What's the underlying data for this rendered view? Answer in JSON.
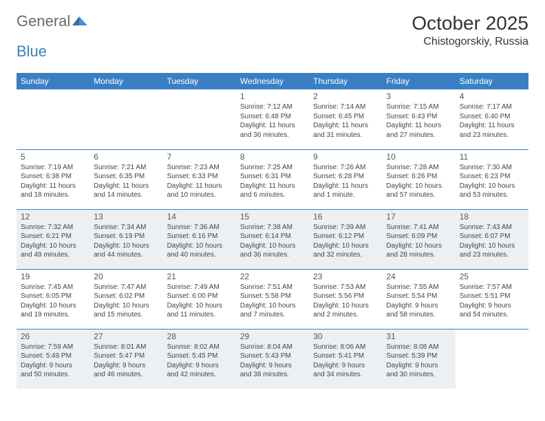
{
  "logo": {
    "part1": "General",
    "part2": "Blue"
  },
  "title": "October 2025",
  "location": "Chistogorskiy, Russia",
  "weekday_header_bg": "#3a7fc4",
  "weekdays": [
    "Sunday",
    "Monday",
    "Tuesday",
    "Wednesday",
    "Thursday",
    "Friday",
    "Saturday"
  ],
  "rows": [
    {
      "shaded": false,
      "cells": [
        {
          "empty": true
        },
        {
          "empty": true
        },
        {
          "empty": true
        },
        {
          "day": "1",
          "sunrise": "7:12 AM",
          "sunset": "6:48 PM",
          "daylight": "11 hours and 36 minutes."
        },
        {
          "day": "2",
          "sunrise": "7:14 AM",
          "sunset": "6:45 PM",
          "daylight": "11 hours and 31 minutes."
        },
        {
          "day": "3",
          "sunrise": "7:15 AM",
          "sunset": "6:43 PM",
          "daylight": "11 hours and 27 minutes."
        },
        {
          "day": "4",
          "sunrise": "7:17 AM",
          "sunset": "6:40 PM",
          "daylight": "11 hours and 23 minutes."
        }
      ]
    },
    {
      "shaded": false,
      "cells": [
        {
          "day": "5",
          "sunrise": "7:19 AM",
          "sunset": "6:38 PM",
          "daylight": "11 hours and 18 minutes."
        },
        {
          "day": "6",
          "sunrise": "7:21 AM",
          "sunset": "6:35 PM",
          "daylight": "11 hours and 14 minutes."
        },
        {
          "day": "7",
          "sunrise": "7:23 AM",
          "sunset": "6:33 PM",
          "daylight": "11 hours and 10 minutes."
        },
        {
          "day": "8",
          "sunrise": "7:25 AM",
          "sunset": "6:31 PM",
          "daylight": "11 hours and 6 minutes."
        },
        {
          "day": "9",
          "sunrise": "7:26 AM",
          "sunset": "6:28 PM",
          "daylight": "11 hours and 1 minute."
        },
        {
          "day": "10",
          "sunrise": "7:28 AM",
          "sunset": "6:26 PM",
          "daylight": "10 hours and 57 minutes."
        },
        {
          "day": "11",
          "sunrise": "7:30 AM",
          "sunset": "6:23 PM",
          "daylight": "10 hours and 53 minutes."
        }
      ]
    },
    {
      "shaded": true,
      "cells": [
        {
          "day": "12",
          "sunrise": "7:32 AM",
          "sunset": "6:21 PM",
          "daylight": "10 hours and 49 minutes."
        },
        {
          "day": "13",
          "sunrise": "7:34 AM",
          "sunset": "6:19 PM",
          "daylight": "10 hours and 44 minutes."
        },
        {
          "day": "14",
          "sunrise": "7:36 AM",
          "sunset": "6:16 PM",
          "daylight": "10 hours and 40 minutes."
        },
        {
          "day": "15",
          "sunrise": "7:38 AM",
          "sunset": "6:14 PM",
          "daylight": "10 hours and 36 minutes."
        },
        {
          "day": "16",
          "sunrise": "7:39 AM",
          "sunset": "6:12 PM",
          "daylight": "10 hours and 32 minutes."
        },
        {
          "day": "17",
          "sunrise": "7:41 AM",
          "sunset": "6:09 PM",
          "daylight": "10 hours and 28 minutes."
        },
        {
          "day": "18",
          "sunrise": "7:43 AM",
          "sunset": "6:07 PM",
          "daylight": "10 hours and 23 minutes."
        }
      ]
    },
    {
      "shaded": false,
      "cells": [
        {
          "day": "19",
          "sunrise": "7:45 AM",
          "sunset": "6:05 PM",
          "daylight": "10 hours and 19 minutes."
        },
        {
          "day": "20",
          "sunrise": "7:47 AM",
          "sunset": "6:02 PM",
          "daylight": "10 hours and 15 minutes."
        },
        {
          "day": "21",
          "sunrise": "7:49 AM",
          "sunset": "6:00 PM",
          "daylight": "10 hours and 11 minutes."
        },
        {
          "day": "22",
          "sunrise": "7:51 AM",
          "sunset": "5:58 PM",
          "daylight": "10 hours and 7 minutes."
        },
        {
          "day": "23",
          "sunrise": "7:53 AM",
          "sunset": "5:56 PM",
          "daylight": "10 hours and 2 minutes."
        },
        {
          "day": "24",
          "sunrise": "7:55 AM",
          "sunset": "5:54 PM",
          "daylight": "9 hours and 58 minutes."
        },
        {
          "day": "25",
          "sunrise": "7:57 AM",
          "sunset": "5:51 PM",
          "daylight": "9 hours and 54 minutes."
        }
      ]
    },
    {
      "shaded": true,
      "cells": [
        {
          "day": "26",
          "sunrise": "7:59 AM",
          "sunset": "5:49 PM",
          "daylight": "9 hours and 50 minutes."
        },
        {
          "day": "27",
          "sunrise": "8:01 AM",
          "sunset": "5:47 PM",
          "daylight": "9 hours and 46 minutes."
        },
        {
          "day": "28",
          "sunrise": "8:02 AM",
          "sunset": "5:45 PM",
          "daylight": "9 hours and 42 minutes."
        },
        {
          "day": "29",
          "sunrise": "8:04 AM",
          "sunset": "5:43 PM",
          "daylight": "9 hours and 38 minutes."
        },
        {
          "day": "30",
          "sunrise": "8:06 AM",
          "sunset": "5:41 PM",
          "daylight": "9 hours and 34 minutes."
        },
        {
          "day": "31",
          "sunrise": "8:08 AM",
          "sunset": "5:39 PM",
          "daylight": "9 hours and 30 minutes."
        },
        {
          "empty": true
        }
      ]
    }
  ],
  "labels": {
    "sunrise_prefix": "Sunrise: ",
    "sunset_prefix": "Sunset: ",
    "daylight_prefix": "Daylight: "
  }
}
